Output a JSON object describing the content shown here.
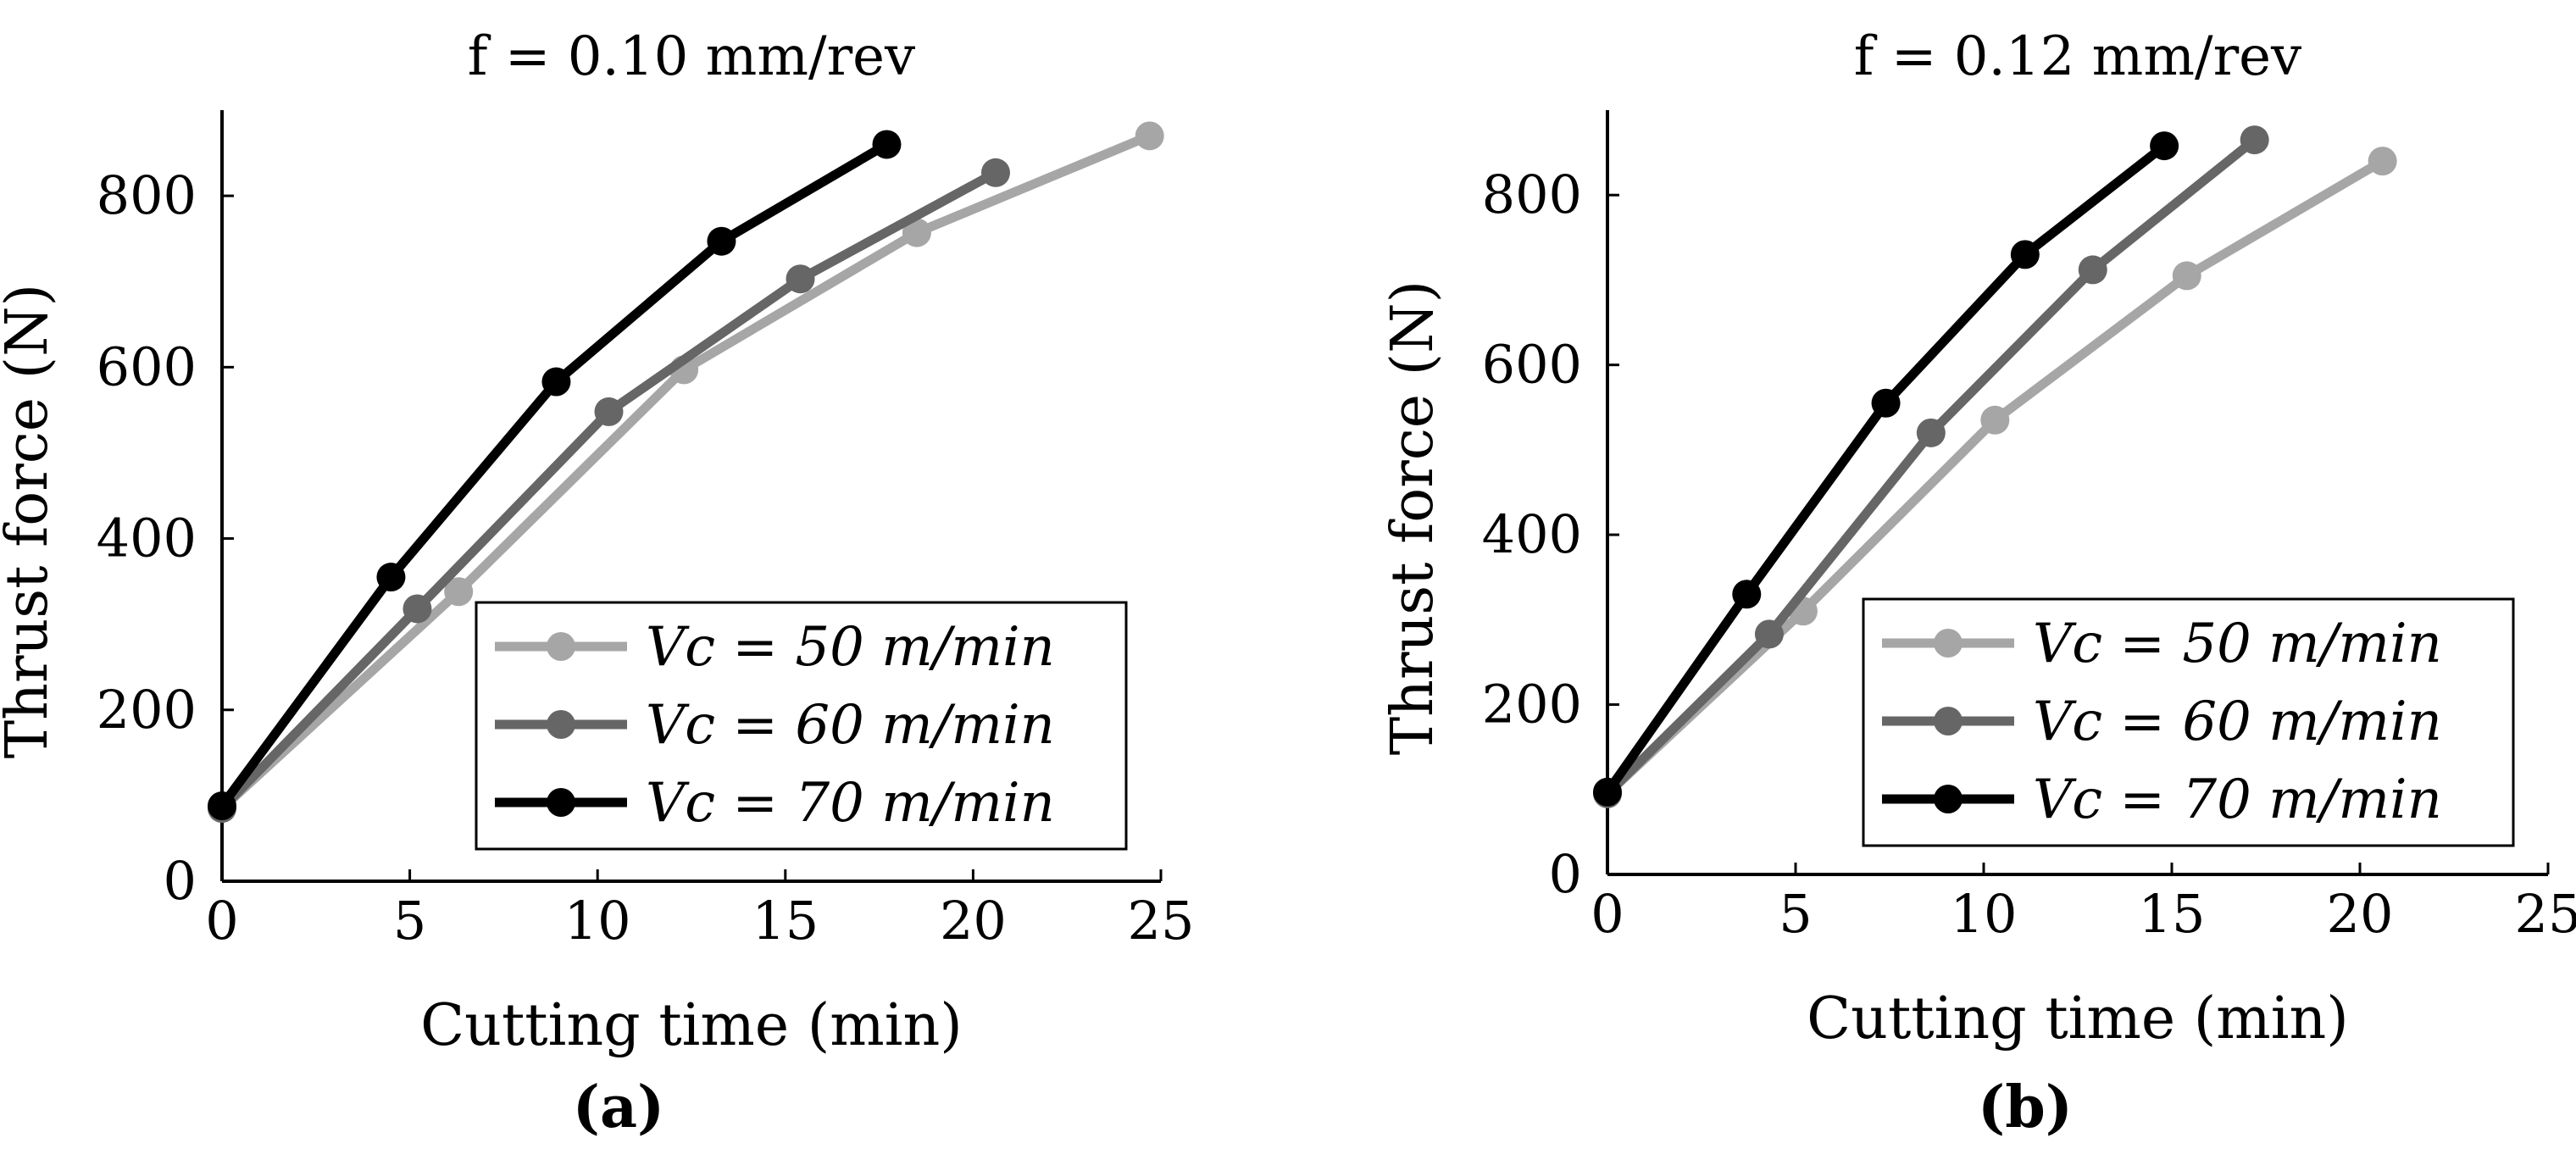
{
  "chart_data": [
    {
      "type": "line",
      "panel_label": "(a)",
      "title": "f = 0.10 mm/rev",
      "xlabel": "Cutting time (min)",
      "ylabel": "Thrust force (N)",
      "xlim": [
        0,
        25
      ],
      "ylim": [
        0,
        900
      ],
      "xticks": [
        0,
        5,
        10,
        15,
        20,
        25
      ],
      "yticks": [
        0,
        200,
        400,
        600,
        800
      ],
      "legend_position": "bottom-right",
      "series": [
        {
          "name": "Vc = 50 m/min",
          "color": "#a6a6a6",
          "x": [
            0,
            6.3,
            12.3,
            18.5,
            24.7
          ],
          "y": [
            85,
            338,
            597,
            757,
            870
          ]
        },
        {
          "name": "Vc = 60 m/min",
          "color": "#666666",
          "x": [
            0,
            5.2,
            10.3,
            15.4,
            20.6
          ],
          "y": [
            85,
            318,
            548,
            703,
            827
          ]
        },
        {
          "name": "Vc = 70 m/min",
          "color": "#000000",
          "x": [
            0,
            4.5,
            8.9,
            13.3,
            17.7
          ],
          "y": [
            88,
            355,
            583,
            747,
            860
          ]
        }
      ]
    },
    {
      "type": "line",
      "panel_label": "(b)",
      "title": "f = 0.12 mm/rev",
      "xlabel": "Cutting time (min)",
      "ylabel": "Thrust force (N)",
      "xlim": [
        0,
        25
      ],
      "ylim": [
        0,
        900
      ],
      "xticks": [
        0,
        5,
        10,
        15,
        20,
        25
      ],
      "yticks": [
        0,
        200,
        400,
        600,
        800
      ],
      "legend_position": "bottom-right",
      "series": [
        {
          "name": "Vc = 50 m/min",
          "color": "#a6a6a6",
          "x": [
            0,
            5.2,
            10.3,
            15.4,
            20.6
          ],
          "y": [
            95,
            310,
            535,
            705,
            840
          ]
        },
        {
          "name": "Vc = 60 m/min",
          "color": "#666666",
          "x": [
            0,
            4.3,
            8.6,
            12.9,
            17.2
          ],
          "y": [
            95,
            283,
            520,
            712,
            865
          ]
        },
        {
          "name": "Vc = 70 m/min",
          "color": "#000000",
          "x": [
            0,
            3.7,
            7.4,
            11.1,
            14.8
          ],
          "y": [
            97,
            330,
            555,
            730,
            858
          ]
        }
      ]
    }
  ]
}
